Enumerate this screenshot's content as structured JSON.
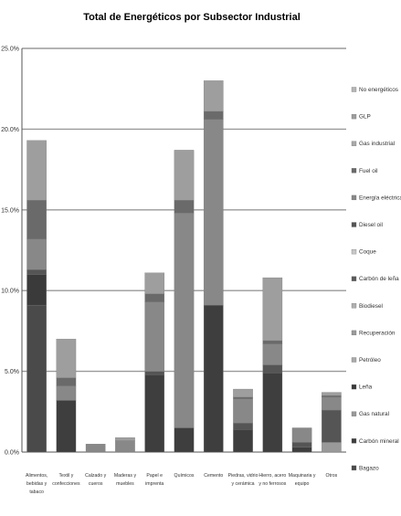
{
  "chart_data": {
    "type": "bar",
    "stacked": true,
    "title": "Total de Energéticos por Subsector Industrial",
    "xlabel": "",
    "ylabel": "",
    "ylim": [
      0,
      25
    ],
    "ytick_values": [
      0,
      5,
      10,
      15,
      20,
      25
    ],
    "ytick_labels": [
      "0.0%",
      "5.0%",
      "10.0%",
      "15.0%",
      "20.0%",
      "25.0%"
    ],
    "grid": "horizontal",
    "legend_position": "right",
    "categories": [
      [
        "Alimentos,",
        "bebidas y",
        "tabaco"
      ],
      [
        "Textil y",
        "confecciones"
      ],
      [
        "Calzado y",
        "cueros"
      ],
      [
        "Maderas y",
        "muebles"
      ],
      [
        "Papel e",
        "imprenta"
      ],
      [
        "Químicos"
      ],
      [
        "Cemento"
      ],
      [
        "Piedras, vidrio",
        "y cerámica"
      ],
      [
        "Hierro, acero",
        "y no ferrosos"
      ],
      [
        "Maquinaria y",
        "equipo"
      ],
      [
        "Otros"
      ]
    ],
    "series": [
      {
        "name": "Bagazo",
        "color": "#4a4a4a",
        "values": [
          9.1,
          0,
          0,
          0,
          0,
          0,
          0,
          0,
          0,
          0,
          0
        ]
      },
      {
        "name": "Carbón mineral",
        "color": "#3e3e3e",
        "values": [
          0,
          3.2,
          0,
          0,
          4.8,
          1.5,
          9.1,
          1.4,
          4.9,
          0.3,
          0
        ]
      },
      {
        "name": "Gas natural",
        "color": "#999999",
        "values": [
          0,
          0,
          0,
          0,
          0,
          0,
          0,
          0,
          0,
          0,
          0.6
        ]
      },
      {
        "name": "Leña",
        "color": "#3a3a3a",
        "values": [
          1.9,
          0,
          0,
          0,
          0,
          0,
          0,
          0,
          0,
          0,
          0
        ]
      },
      {
        "name": "Petróleo",
        "color": "#aaaaaa",
        "values": [
          0,
          0,
          0,
          0,
          0,
          0,
          0,
          0,
          0,
          0,
          0
        ]
      },
      {
        "name": "Recuperación",
        "color": "#9a9a9a",
        "values": [
          0,
          0,
          0,
          0,
          0,
          0,
          0,
          0,
          0,
          0,
          0
        ]
      },
      {
        "name": "Biodiesel",
        "color": "#b0b0b0",
        "values": [
          0,
          0,
          0,
          0,
          0,
          0,
          0,
          0,
          0,
          0,
          0
        ]
      },
      {
        "name": "Carbón de leña",
        "color": "#5a5a5a",
        "values": [
          0,
          0,
          0,
          0,
          0,
          0,
          0,
          0,
          0,
          0,
          0
        ]
      },
      {
        "name": "Coque",
        "color": "#c8c8c8",
        "values": [
          0,
          0,
          0,
          0,
          0,
          0,
          0,
          0,
          0,
          0,
          0
        ]
      },
      {
        "name": "Diesel oil",
        "color": "#555555",
        "values": [
          0.3,
          0,
          0,
          0,
          0.2,
          0,
          0,
          0.4,
          0.5,
          0.3,
          2.0
        ]
      },
      {
        "name": "Energía eléctrica",
        "color": "#888888",
        "values": [
          1.9,
          0.9,
          0.5,
          0.7,
          4.3,
          13.3,
          11.5,
          1.5,
          1.3,
          0.9,
          0.8
        ]
      },
      {
        "name": "Fuel oil",
        "color": "#6a6a6a",
        "values": [
          2.4,
          0.5,
          0,
          0,
          0.5,
          0.8,
          0.5,
          0.1,
          0.2,
          0,
          0.1
        ]
      },
      {
        "name": "Gas industrial",
        "color": "#a8a8a8",
        "values": [
          0,
          0,
          0,
          0,
          0,
          0,
          0,
          0,
          0,
          0,
          0
        ]
      },
      {
        "name": "GLP",
        "color": "#9e9e9e",
        "values": [
          3.7,
          2.4,
          0,
          0.2,
          1.3,
          3.1,
          1.9,
          0.5,
          3.9,
          0,
          0.2
        ]
      },
      {
        "name": "No energéticos",
        "color": "#b5b5b5",
        "values": [
          0,
          0,
          0,
          0,
          0,
          0,
          0,
          0,
          0,
          0,
          0
        ]
      }
    ]
  }
}
